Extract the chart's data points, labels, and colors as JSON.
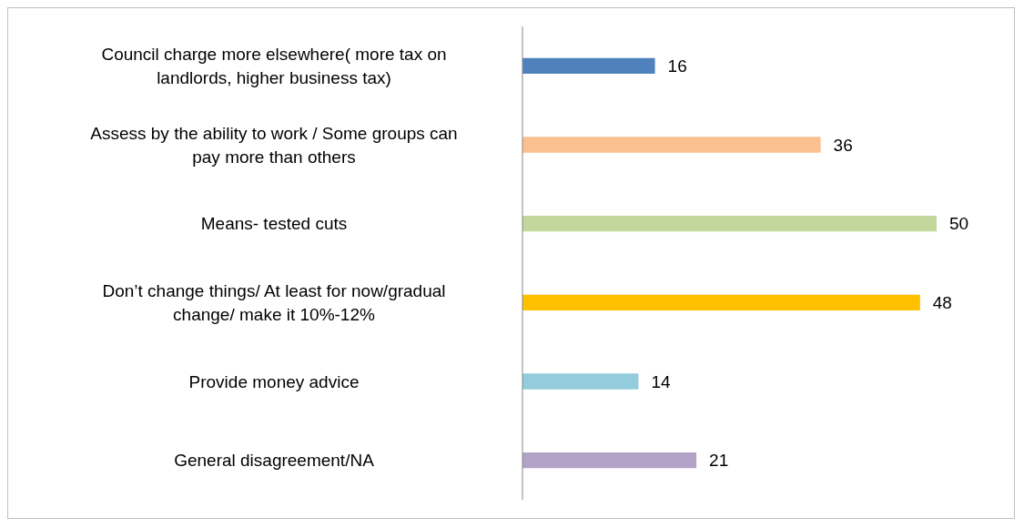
{
  "chart_data": {
    "type": "bar",
    "orientation": "horizontal",
    "categories": [
      "Council charge more elsewhere( more tax on landlords, higher business tax)",
      "Assess by the ability to work / Some groups can pay more than others",
      "Means- tested cuts",
      "Don’t change things/ At least for now/gradual change/ make it 10%-12%",
      "Provide money advice",
      "General disagreement/NA"
    ],
    "values": [
      16,
      36,
      50,
      48,
      14,
      21
    ],
    "colors": [
      "#4f81bd",
      "#fac090",
      "#c3d69b",
      "#ffc000",
      "#93cddd",
      "#b3a2c7"
    ],
    "data_labels": true,
    "tick_labels": "y",
    "grid": false,
    "legend": false
  }
}
